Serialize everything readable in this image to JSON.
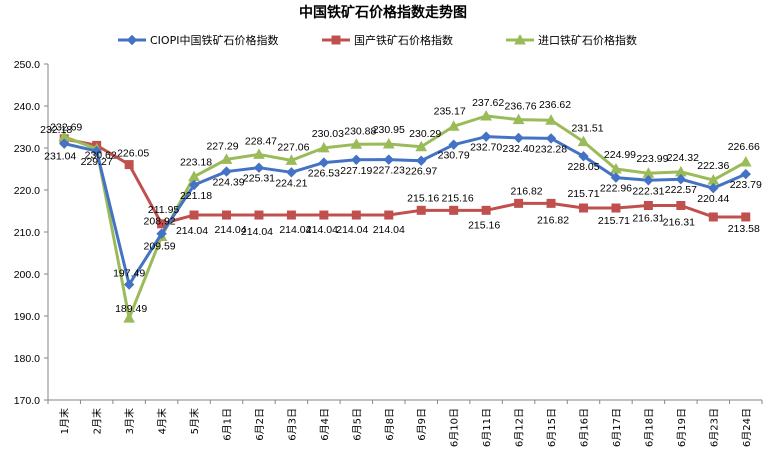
{
  "chart_data": {
    "type": "line",
    "title": "中国铁矿石价格指数走势图",
    "xlabel": "",
    "ylabel": "",
    "ylim": [
      170,
      250
    ],
    "yticks": [
      "170.0",
      "180.0",
      "190.0",
      "200.0",
      "210.0",
      "220.0",
      "230.0",
      "240.0",
      "250.0"
    ],
    "grid": false,
    "legend_position": "top",
    "categories": [
      "1月末",
      "2月末",
      "3月末",
      "4月末",
      "5月末",
      "6月1日",
      "6月2日",
      "6月3日",
      "6月4日",
      "6月5日",
      "6月8日",
      "6月9日",
      "6月10日",
      "6月11日",
      "6月12日",
      "6月15日",
      "6月16日",
      "6月17日",
      "6月18日",
      "6月19日",
      "6月23日",
      "6月24日"
    ],
    "series": [
      {
        "name": "CIOPI中国铁矿石价格指数",
        "color": "#4472C4",
        "marker": "diamond",
        "values": [
          231.04,
          229.27,
          197.49,
          209.59,
          221.18,
          224.39,
          225.31,
          224.21,
          226.53,
          227.19,
          227.23,
          226.97,
          230.79,
          232.7,
          232.4,
          232.28,
          228.05,
          222.96,
          222.31,
          222.57,
          220.44,
          223.79
        ],
        "labels": [
          "231.04",
          "229.27",
          "197.49",
          "209.59",
          "221.18",
          "224.39",
          "225.31",
          "224.21",
          "226.53",
          "227.19",
          "227.23",
          "226.97",
          "230.79",
          "232.70",
          "232.40",
          "232.28",
          "228.05",
          "222.96",
          "222.31",
          "222.57",
          "220.44",
          "223.79"
        ]
      },
      {
        "name": "国产铁矿石价格指数",
        "color": "#C0504D",
        "marker": "square",
        "values": [
          232.18,
          230.62,
          226.05,
          211.95,
          214.04,
          214.04,
          214.04,
          214.04,
          214.04,
          214.04,
          214.04,
          215.16,
          215.16,
          215.16,
          216.82,
          216.82,
          215.71,
          215.71,
          216.31,
          216.31,
          213.58,
          213.58
        ],
        "labels": [
          "232.18",
          "230.62",
          "226.05",
          "211.95",
          "214.04",
          "214.04",
          "214.04",
          "214.04",
          "214.04",
          "214.04",
          "214.04",
          "215.16",
          "215.16",
          "215.16",
          "216.82",
          "216.82",
          "215.71",
          "215.71",
          "216.31",
          "216.31",
          "",
          "213.58"
        ]
      },
      {
        "name": "进口铁矿石价格指数",
        "color": "#9BBB59",
        "marker": "triangle",
        "values": [
          232.69,
          229.8,
          189.49,
          208.92,
          223.18,
          227.29,
          228.47,
          227.06,
          230.03,
          230.88,
          230.95,
          230.29,
          235.17,
          237.62,
          236.76,
          236.62,
          231.51,
          224.99,
          223.99,
          224.32,
          222.36,
          226.66
        ],
        "labels": [
          "232.69",
          "",
          "189.49",
          "208.92",
          "223.18",
          "227.29",
          "228.47",
          "227.06",
          "230.03",
          "230.88",
          "230.95",
          "230.29",
          "235.17",
          "237.62",
          "236.76",
          "236.62",
          "231.51",
          "224.99",
          "223.99",
          "224.32",
          "222.36",
          "226.66"
        ]
      }
    ]
  }
}
